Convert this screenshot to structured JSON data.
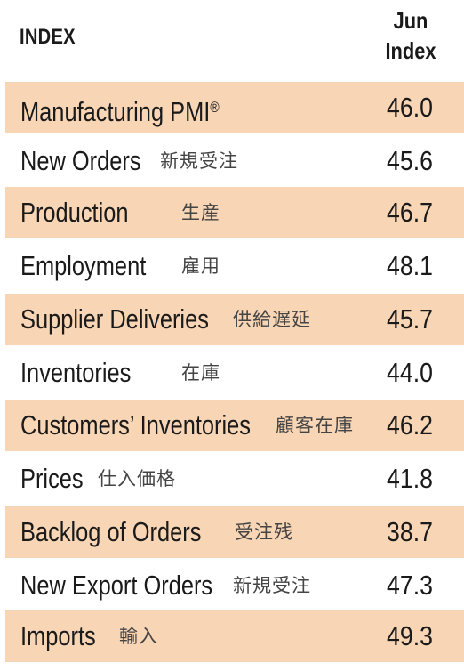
{
  "header": {
    "index_label": "INDEX",
    "col_line1": "Jun",
    "col_line2": "Index"
  },
  "rows": [
    {
      "name": "Manufacturing PMI",
      "mark": "®",
      "jp": "",
      "value": "46.0"
    },
    {
      "name": "New Orders",
      "jp": "新規受注",
      "value": "45.6"
    },
    {
      "name": "Production",
      "jp": "生産",
      "value": "46.7"
    },
    {
      "name": "Employment",
      "jp": "雇用",
      "value": "48.1"
    },
    {
      "name": "Supplier Deliveries",
      "jp": "供給遅延",
      "value": "45.7"
    },
    {
      "name": "Inventories",
      "jp": "在庫",
      "value": "44.0"
    },
    {
      "name": "Customers’ Inventories",
      "jp": "顧客在庫",
      "value": "46.2"
    },
    {
      "name": "Prices",
      "jp": "仕入価格",
      "value": "41.8"
    },
    {
      "name": "Backlog of Orders",
      "jp": "受注残",
      "value": "38.7"
    },
    {
      "name": "New Export Orders",
      "jp": "新規受注",
      "value": "47.3"
    },
    {
      "name": "Imports",
      "jp": "輸入",
      "value": "49.3"
    }
  ]
}
